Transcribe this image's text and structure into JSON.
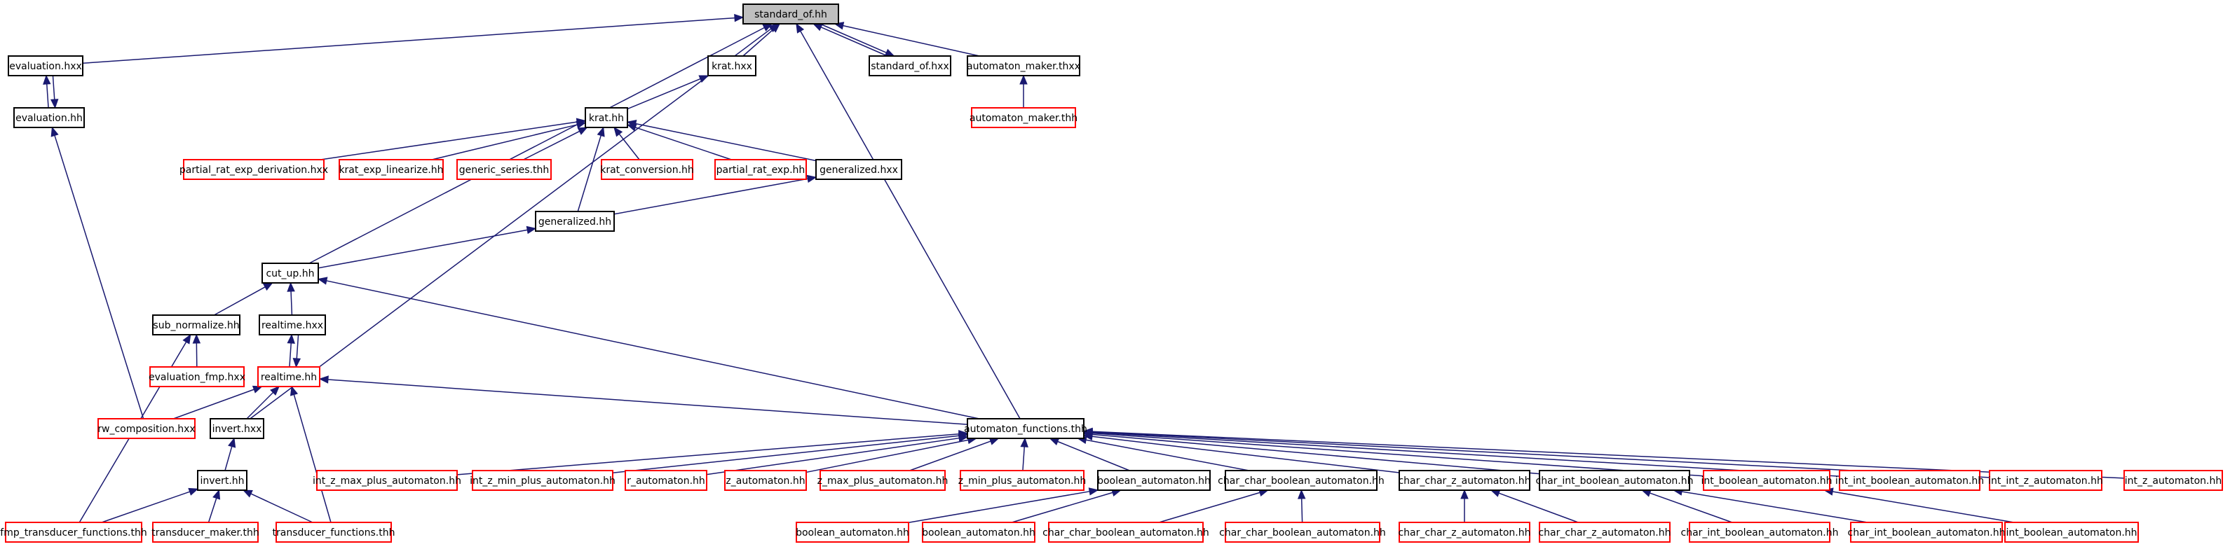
{
  "colors": {
    "edge": "#191970",
    "node_border": "#000000",
    "missing_border": "#ff0000",
    "root_fill": "#bfbfbf",
    "node_fill": "#ffffff"
  },
  "nodes": [
    {
      "id": "standard_of_hh",
      "label": "standard_of.hh",
      "style": "root"
    },
    {
      "id": "evaluation_hxx",
      "label": "evaluation.hxx",
      "style": "normal"
    },
    {
      "id": "krat_hxx",
      "label": "krat.hxx",
      "style": "normal"
    },
    {
      "id": "standard_of_hxx",
      "label": "standard_of.hxx",
      "style": "normal"
    },
    {
      "id": "automaton_maker_thxx",
      "label": "automaton_maker.thxx",
      "style": "normal"
    },
    {
      "id": "evaluation_hh",
      "label": "evaluation.hh",
      "style": "normal"
    },
    {
      "id": "automaton_maker_thh",
      "label": "automaton_maker.thh",
      "style": "missing"
    },
    {
      "id": "krat_hh",
      "label": "krat.hh",
      "style": "normal"
    },
    {
      "id": "partial_rat_exp_derivation_hxx",
      "label": "partial_rat_exp_derivation.hxx",
      "style": "missing"
    },
    {
      "id": "krat_exp_linearize_hh",
      "label": "krat_exp_linearize.hh",
      "style": "missing"
    },
    {
      "id": "generic_series_thh",
      "label": "generic_series.thh",
      "style": "missing"
    },
    {
      "id": "krat_conversion_hh",
      "label": "krat_conversion.hh",
      "style": "missing"
    },
    {
      "id": "partial_rat_exp_hh",
      "label": "partial_rat_exp.hh",
      "style": "missing"
    },
    {
      "id": "generalized_hxx",
      "label": "generalized.hxx",
      "style": "normal"
    },
    {
      "id": "generalized_hh",
      "label": "generalized.hh",
      "style": "normal"
    },
    {
      "id": "cut_up_hh",
      "label": "cut_up.hh",
      "style": "normal"
    },
    {
      "id": "sub_normalize_hh",
      "label": "sub_normalize.hh",
      "style": "normal"
    },
    {
      "id": "realtime_hxx",
      "label": "realtime.hxx",
      "style": "normal"
    },
    {
      "id": "evaluation_fmp_hxx",
      "label": "evaluation_fmp.hxx",
      "style": "missing"
    },
    {
      "id": "realtime_hh",
      "label": "realtime.hh",
      "style": "missing"
    },
    {
      "id": "rw_composition_hxx",
      "label": "rw_composition.hxx",
      "style": "missing"
    },
    {
      "id": "invert_hxx",
      "label": "invert.hxx",
      "style": "normal"
    },
    {
      "id": "automaton_functions_thh",
      "label": "automaton_functions.thh",
      "style": "normal"
    },
    {
      "id": "invert_hh",
      "label": "invert.hh",
      "style": "normal"
    },
    {
      "id": "int_z_max_plus_automaton_hh",
      "label": "int_z_max_plus_automaton.hh",
      "style": "missing"
    },
    {
      "id": "int_z_min_plus_automaton_hh",
      "label": "int_z_min_plus_automaton.hh",
      "style": "missing"
    },
    {
      "id": "r_automaton_hh",
      "label": "r_automaton.hh",
      "style": "missing"
    },
    {
      "id": "z_automaton_hh",
      "label": "z_automaton.hh",
      "style": "missing"
    },
    {
      "id": "z_max_plus_automaton_hh",
      "label": "z_max_plus_automaton.hh",
      "style": "missing"
    },
    {
      "id": "z_min_plus_automaton_hh",
      "label": "z_min_plus_automaton.hh",
      "style": "missing"
    },
    {
      "id": "boolean_automaton_hh_a",
      "label": "boolean_automaton.hh",
      "style": "normal"
    },
    {
      "id": "char_char_boolean_automaton_hh_a",
      "label": "char_char_boolean_automaton.hh",
      "style": "normal"
    },
    {
      "id": "char_char_z_automaton_hh_a",
      "label": "char_char_z_automaton.hh",
      "style": "normal"
    },
    {
      "id": "char_int_boolean_automaton_hh_a",
      "label": "char_int_boolean_automaton.hh",
      "style": "normal"
    },
    {
      "id": "int_boolean_automaton_hh_a",
      "label": "int_boolean_automaton.hh",
      "style": "missing"
    },
    {
      "id": "int_int_boolean_automaton_hh",
      "label": "int_int_boolean_automaton.hh",
      "style": "missing"
    },
    {
      "id": "int_int_z_automaton_hh",
      "label": "int_int_z_automaton.hh",
      "style": "missing"
    },
    {
      "id": "int_z_automaton_hh",
      "label": "int_z_automaton.hh",
      "style": "missing"
    },
    {
      "id": "fmp_transducer_functions_thh",
      "label": "fmp_transducer_functions.thh",
      "style": "missing"
    },
    {
      "id": "transducer_maker_thh",
      "label": "transducer_maker.thh",
      "style": "missing"
    },
    {
      "id": "transducer_functions_thh",
      "label": "transducer_functions.thh",
      "style": "missing"
    },
    {
      "id": "boolean_automaton_hh_b",
      "label": "boolean_automaton.hh",
      "style": "missing"
    },
    {
      "id": "boolean_automaton_hh_c",
      "label": "boolean_automaton.hh",
      "style": "missing"
    },
    {
      "id": "char_char_boolean_automaton_hh_b",
      "label": "char_char_boolean_automaton.hh",
      "style": "missing"
    },
    {
      "id": "char_char_boolean_automaton_hh_c",
      "label": "char_char_boolean_automaton.hh",
      "style": "missing"
    },
    {
      "id": "char_char_z_automaton_hh_b",
      "label": "char_char_z_automaton.hh",
      "style": "missing"
    },
    {
      "id": "char_char_z_automaton_hh_c",
      "label": "char_char_z_automaton.hh",
      "style": "missing"
    },
    {
      "id": "char_int_boolean_automaton_hh_b",
      "label": "char_int_boolean_automaton.hh",
      "style": "missing"
    },
    {
      "id": "char_int_boolean_automaton_hh_c",
      "label": "char_int_boolean_automaton.hh",
      "style": "missing"
    },
    {
      "id": "int_boolean_automaton_hh_b",
      "label": "int_boolean_automaton.hh",
      "style": "missing"
    }
  ],
  "edges": [
    {
      "from": "evaluation_hxx",
      "to": "standard_of_hh"
    },
    {
      "from": "krat_hxx",
      "to": "standard_of_hh"
    },
    {
      "from": "standard_of_hxx",
      "to": "standard_of_hh"
    },
    {
      "from": "standard_of_hh",
      "to": "standard_of_hxx"
    },
    {
      "from": "automaton_maker_thxx",
      "to": "standard_of_hh"
    },
    {
      "from": "cut_up_hh",
      "to": "standard_of_hh"
    },
    {
      "from": "invert_hxx",
      "to": "standard_of_hh"
    },
    {
      "from": "automaton_functions_thh",
      "to": "standard_of_hh"
    },
    {
      "from": "evaluation_hh",
      "to": "evaluation_hxx"
    },
    {
      "from": "evaluation_hxx",
      "to": "evaluation_hh"
    },
    {
      "from": "rw_composition_hxx",
      "to": "evaluation_hh"
    },
    {
      "from": "automaton_maker_thh",
      "to": "automaton_maker_thxx"
    },
    {
      "from": "krat_hh",
      "to": "krat_hxx"
    },
    {
      "from": "partial_rat_exp_derivation_hxx",
      "to": "krat_hh"
    },
    {
      "from": "krat_exp_linearize_hh",
      "to": "krat_hh"
    },
    {
      "from": "generic_series_thh",
      "to": "krat_hh"
    },
    {
      "from": "krat_conversion_hh",
      "to": "krat_hh"
    },
    {
      "from": "partial_rat_exp_hh",
      "to": "krat_hh"
    },
    {
      "from": "generalized_hxx",
      "to": "krat_hh"
    },
    {
      "from": "generalized_hh",
      "to": "krat_hh"
    },
    {
      "from": "generalized_hh",
      "to": "generalized_hxx"
    },
    {
      "from": "cut_up_hh",
      "to": "generalized_hh"
    },
    {
      "from": "sub_normalize_hh",
      "to": "cut_up_hh"
    },
    {
      "from": "realtime_hxx",
      "to": "cut_up_hh"
    },
    {
      "from": "automaton_functions_thh",
      "to": "cut_up_hh"
    },
    {
      "from": "evaluation_fmp_hxx",
      "to": "sub_normalize_hh"
    },
    {
      "from": "fmp_transducer_functions_thh",
      "to": "sub_normalize_hh"
    },
    {
      "from": "realtime_hh",
      "to": "realtime_hxx"
    },
    {
      "from": "realtime_hxx",
      "to": "realtime_hh"
    },
    {
      "from": "rw_composition_hxx",
      "to": "realtime_hh"
    },
    {
      "from": "invert_hxx",
      "to": "realtime_hh"
    },
    {
      "from": "automaton_functions_thh",
      "to": "realtime_hh"
    },
    {
      "from": "transducer_functions_thh",
      "to": "realtime_hh"
    },
    {
      "from": "invert_hh",
      "to": "invert_hxx"
    },
    {
      "from": "fmp_transducer_functions_thh",
      "to": "invert_hh"
    },
    {
      "from": "transducer_maker_thh",
      "to": "invert_hh"
    },
    {
      "from": "transducer_functions_thh",
      "to": "invert_hh"
    },
    {
      "from": "int_z_max_plus_automaton_hh",
      "to": "automaton_functions_thh"
    },
    {
      "from": "int_z_min_plus_automaton_hh",
      "to": "automaton_functions_thh"
    },
    {
      "from": "r_automaton_hh",
      "to": "automaton_functions_thh"
    },
    {
      "from": "z_automaton_hh",
      "to": "automaton_functions_thh"
    },
    {
      "from": "z_max_plus_automaton_hh",
      "to": "automaton_functions_thh"
    },
    {
      "from": "z_min_plus_automaton_hh",
      "to": "automaton_functions_thh"
    },
    {
      "from": "boolean_automaton_hh_a",
      "to": "automaton_functions_thh"
    },
    {
      "from": "char_char_boolean_automaton_hh_a",
      "to": "automaton_functions_thh"
    },
    {
      "from": "char_char_z_automaton_hh_a",
      "to": "automaton_functions_thh"
    },
    {
      "from": "char_int_boolean_automaton_hh_a",
      "to": "automaton_functions_thh"
    },
    {
      "from": "int_boolean_automaton_hh_a",
      "to": "automaton_functions_thh"
    },
    {
      "from": "int_int_boolean_automaton_hh",
      "to": "automaton_functions_thh"
    },
    {
      "from": "int_int_z_automaton_hh",
      "to": "automaton_functions_thh"
    },
    {
      "from": "int_z_automaton_hh",
      "to": "automaton_functions_thh"
    },
    {
      "from": "boolean_automaton_hh_b",
      "to": "boolean_automaton_hh_a"
    },
    {
      "from": "boolean_automaton_hh_c",
      "to": "boolean_automaton_hh_a"
    },
    {
      "from": "char_char_boolean_automaton_hh_b",
      "to": "char_char_boolean_automaton_hh_a"
    },
    {
      "from": "char_char_boolean_automaton_hh_c",
      "to": "char_char_boolean_automaton_hh_a"
    },
    {
      "from": "char_char_z_automaton_hh_b",
      "to": "char_char_z_automaton_hh_a"
    },
    {
      "from": "char_char_z_automaton_hh_c",
      "to": "char_char_z_automaton_hh_a"
    },
    {
      "from": "char_int_boolean_automaton_hh_b",
      "to": "char_int_boolean_automaton_hh_a"
    },
    {
      "from": "char_int_boolean_automaton_hh_c",
      "to": "char_int_boolean_automaton_hh_a"
    },
    {
      "from": "int_boolean_automaton_hh_b",
      "to": "int_boolean_automaton_hh_a"
    }
  ]
}
